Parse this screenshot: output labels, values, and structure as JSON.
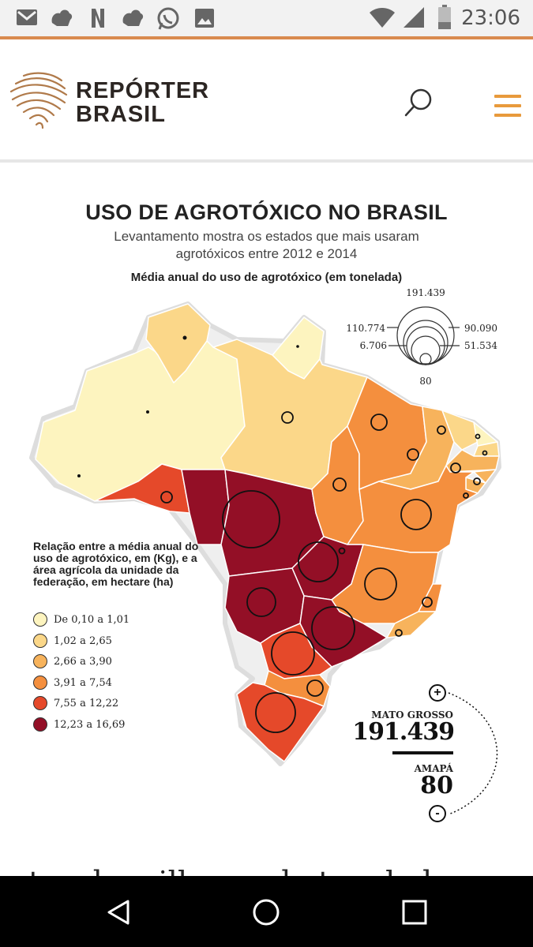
{
  "status_bar": {
    "time": "23:06",
    "left_icons": [
      "mail-icon",
      "bird-icon",
      "netflix-icon",
      "bird-icon",
      "whatsapp-icon",
      "image-icon"
    ],
    "right_icons": [
      "wifi-icon",
      "signal-icon",
      "battery-icon"
    ]
  },
  "header": {
    "brand_line1": "REPÓRTER",
    "brand_line2": "BRASIL",
    "search_icon": "search-icon",
    "menu_icon": "hamburger-icon",
    "accent_color": "#e89a3c"
  },
  "infographic": {
    "title": "USO DE AGROTÓXICO NO BRASIL",
    "subtitle": "Levantamento mostra os estados que mais usaram agrotóxicos entre 2012 e 2014",
    "chart_title": "Média anual do uso de agrotóxico (em tonelada)",
    "size_scale": {
      "values": [
        "191.439",
        "110.774",
        "90.090",
        "51.534",
        "6.706",
        "80"
      ]
    },
    "legend_title": "Relação entre a média anual do uso de agrotóxico, em (Kg), e a área agrícola da unidade da federação, em hectare (ha)",
    "legend": [
      {
        "label": "De 0,10 a 1,01",
        "color": "#fdf4bf"
      },
      {
        "label": "1,02 a 2,65",
        "color": "#fbd789"
      },
      {
        "label": "2,66 a 3,90",
        "color": "#f7b35c"
      },
      {
        "label": "3,91 a 7,54",
        "color": "#f48f3e"
      },
      {
        "label": "7,55 a 12,22",
        "color": "#e5492a"
      },
      {
        "label": "12,23 a 16,69",
        "color": "#930f26"
      }
    ],
    "stats": {
      "max_label": "MATO GROSSO",
      "max_value": "191.439",
      "min_label": "AMAPÁ",
      "min_value": "80",
      "zoom_in": "+",
      "zoom_out": "-"
    }
  },
  "article": {
    "partial_text": "tas de milhares de toneladas"
  },
  "nav_bar": {
    "icons": [
      "back-icon",
      "home-icon",
      "recents-icon"
    ]
  }
}
